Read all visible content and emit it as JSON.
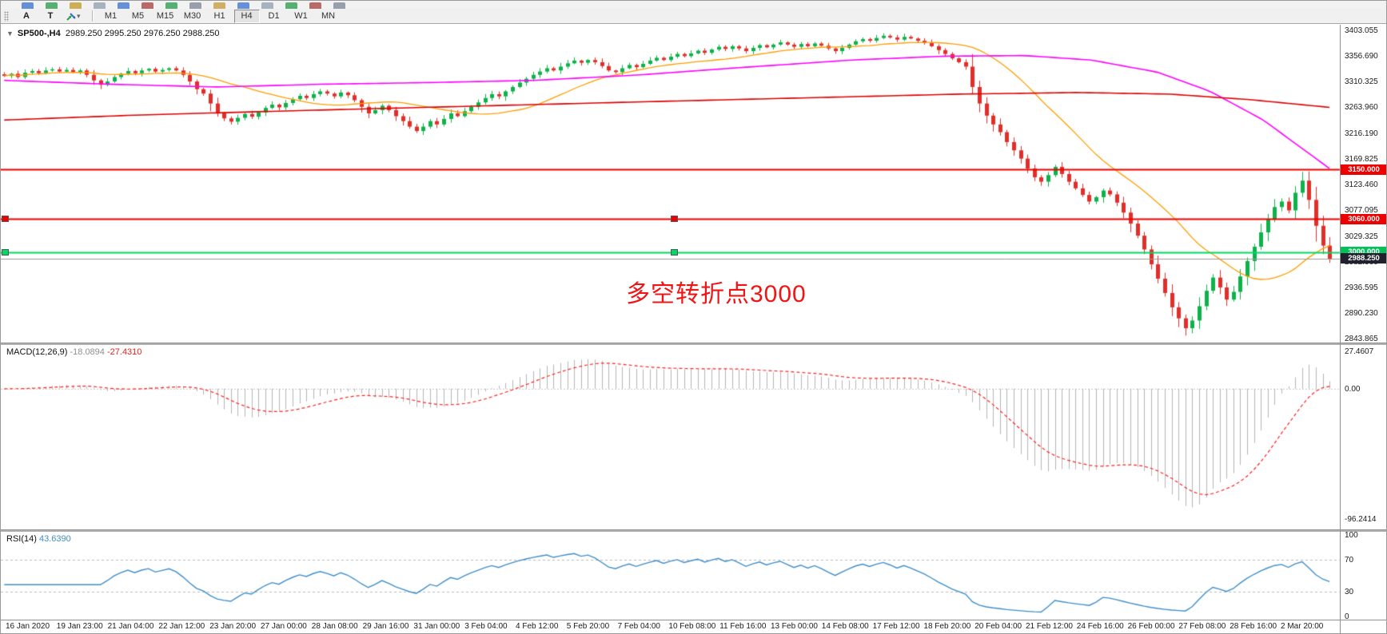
{
  "toolbar": {
    "a_label": "A",
    "t_label": "T",
    "timeframes": [
      "M1",
      "M5",
      "M15",
      "M30",
      "H1",
      "H4",
      "D1",
      "W1",
      "MN"
    ],
    "active_timeframe": "H4",
    "cropped_icon_colors": [
      "#4a7fd4",
      "#3aa55a",
      "#c8a23a",
      "#9aa7b8",
      "#4a7fd4",
      "#b05050",
      "#3aa55a",
      "#8890a0",
      "#caa24a",
      "#4a7fd4",
      "#9aa7b8",
      "#3aa55a",
      "#b05050",
      "#8890a0"
    ]
  },
  "chart": {
    "title": "SP500-,H4",
    "ohlc": "2989.250 2995.250 2976.250 2988.250",
    "annotation": "多空转折点3000",
    "y_axis_labels": [
      "3403.055",
      "3356.690",
      "3310.325",
      "3263.960",
      "3216.190",
      "3169.825",
      "3123.460",
      "3077.095",
      "3029.325",
      "2982.960",
      "2936.595",
      "2890.230",
      "2843.865"
    ],
    "levels": [
      {
        "price": 3150.0,
        "label": "3150.000",
        "color": "#ee0000",
        "tag_bg": "#ee0000",
        "thickness": 2,
        "handles": false
      },
      {
        "price": 3060.0,
        "label": "3060.000",
        "color": "#ee0000",
        "tag_bg": "#ee0000",
        "thickness": 2,
        "handles": true
      },
      {
        "price": 3000.0,
        "label": "3000.000",
        "color": "#00d964",
        "tag_bg": "#00c257",
        "thickness": 2,
        "handles": true
      },
      {
        "price": 2988.25,
        "label": "2988.250",
        "color": "#9a9a9a",
        "tag_bg": "#20202e",
        "thickness": 1,
        "handles": false
      }
    ]
  },
  "macd": {
    "name": "MACD(12,26,9)",
    "main_value": "-18.0894",
    "signal_value": "-27.4310",
    "axis_labels": [
      "27.4607",
      "0.00",
      "-96.2414"
    ]
  },
  "rsi": {
    "name": "RSI(14)",
    "value": "43.6390",
    "axis_labels": [
      "100",
      "70",
      "30",
      "0"
    ],
    "level_lines": [
      70,
      30
    ]
  },
  "time_axis": [
    "16 Jan 2020",
    "19 Jan 23:00",
    "21 Jan 04:00",
    "22 Jan 12:00",
    "23 Jan 20:00",
    "27 Jan 00:00",
    "28 Jan 08:00",
    "29 Jan 16:00",
    "31 Jan 00:00",
    "3 Feb 04:00",
    "4 Feb 12:00",
    "5 Feb 20:00",
    "7 Feb 04:00",
    "10 Feb 08:00",
    "11 Feb 16:00",
    "13 Feb 00:00",
    "14 Feb 08:00",
    "17 Feb 12:00",
    "18 Feb 20:00",
    "20 Feb 04:00",
    "21 Feb 12:00",
    "24 Feb 16:00",
    "26 Feb 00:00",
    "27 Feb 08:00",
    "28 Feb 16:00",
    "2 Mar 20:00"
  ],
  "chart_data": {
    "type": "candlestick",
    "symbol": "SP500-",
    "timeframe": "H4",
    "price_axis": {
      "top_label": 3403.055,
      "bottom_label": 2843.865,
      "grid_step": 46.365
    },
    "closes": [
      3320,
      3324,
      3318,
      3326,
      3329,
      3325,
      3330,
      3332,
      3328,
      3331,
      3327,
      3330,
      3322,
      3312,
      3304,
      3310,
      3318,
      3324,
      3329,
      3325,
      3330,
      3333,
      3328,
      3331,
      3334,
      3330,
      3322,
      3310,
      3296,
      3288,
      3270,
      3252,
      3243,
      3237,
      3244,
      3251,
      3246,
      3254,
      3262,
      3268,
      3263,
      3271,
      3278,
      3284,
      3280,
      3287,
      3292,
      3288,
      3283,
      3290,
      3285,
      3276,
      3264,
      3252,
      3258,
      3266,
      3258,
      3247,
      3238,
      3228,
      3220,
      3228,
      3238,
      3232,
      3242,
      3252,
      3247,
      3256,
      3264,
      3272,
      3280,
      3287,
      3283,
      3292,
      3300,
      3308,
      3315,
      3322,
      3328,
      3334,
      3330,
      3337,
      3343,
      3348,
      3344,
      3349,
      3345,
      3338,
      3330,
      3327,
      3334,
      3340,
      3336,
      3342,
      3348,
      3353,
      3349,
      3355,
      3360,
      3356,
      3361,
      3366,
      3362,
      3368,
      3373,
      3369,
      3374,
      3370,
      3365,
      3371,
      3376,
      3372,
      3377,
      3381,
      3377,
      3373,
      3378,
      3374,
      3379,
      3375,
      3370,
      3365,
      3371,
      3377,
      3383,
      3387,
      3384,
      3389,
      3393,
      3390,
      3386,
      3391,
      3388,
      3384,
      3380,
      3374,
      3367,
      3360,
      3352,
      3345,
      3337,
      3300,
      3270,
      3248,
      3232,
      3218,
      3200,
      3185,
      3170,
      3152,
      3136,
      3128,
      3140,
      3155,
      3142,
      3128,
      3116,
      3104,
      3092,
      3100,
      3112,
      3105,
      3090,
      3072,
      3052,
      3030,
      3005,
      2978,
      2952,
      2926,
      2900,
      2880,
      2862,
      2876,
      2902,
      2930,
      2954,
      2936,
      2914,
      2928,
      2956,
      2984,
      3010,
      3036,
      3060,
      3082,
      3092,
      3076,
      3108,
      3130,
      3095,
      3048,
      3012,
      2988.25
    ],
    "moving_averages": [
      {
        "name": "fast-ma",
        "color": "#ff9d00",
        "period": 20,
        "source": "computed-sma"
      },
      {
        "name": "mid-ma",
        "color": "#ff00ff",
        "anchors": [
          [
            0,
            3312
          ],
          [
            0.08,
            3305
          ],
          [
            0.16,
            3300
          ],
          [
            0.24,
            3305
          ],
          [
            0.32,
            3308
          ],
          [
            0.4,
            3312
          ],
          [
            0.48,
            3322
          ],
          [
            0.56,
            3336
          ],
          [
            0.64,
            3349
          ],
          [
            0.71,
            3356
          ],
          [
            0.77,
            3357
          ],
          [
            0.82,
            3349
          ],
          [
            0.87,
            3327
          ],
          [
            0.91,
            3292
          ],
          [
            0.95,
            3240
          ],
          [
            1,
            3152
          ]
        ]
      },
      {
        "name": "slow-ma",
        "color": "#dd0000",
        "anchors": [
          [
            0,
            3240
          ],
          [
            0.1,
            3249
          ],
          [
            0.22,
            3257
          ],
          [
            0.35,
            3265
          ],
          [
            0.48,
            3273
          ],
          [
            0.6,
            3280
          ],
          [
            0.72,
            3287
          ],
          [
            0.81,
            3290
          ],
          [
            0.88,
            3287
          ],
          [
            0.94,
            3277
          ],
          [
            1,
            3263
          ]
        ]
      }
    ],
    "indicators": [
      {
        "name": "MACD",
        "params": [
          12,
          26,
          9
        ],
        "hist_color": "#b4b4b4",
        "signal_color": "#ff2222"
      },
      {
        "name": "RSI",
        "params": [
          14
        ],
        "line_color": "#3f8ec9"
      }
    ],
    "colors": {
      "up": "#0db24a",
      "down": "#e22e29",
      "background": "#ffffff",
      "annotation": "#f01414"
    }
  }
}
